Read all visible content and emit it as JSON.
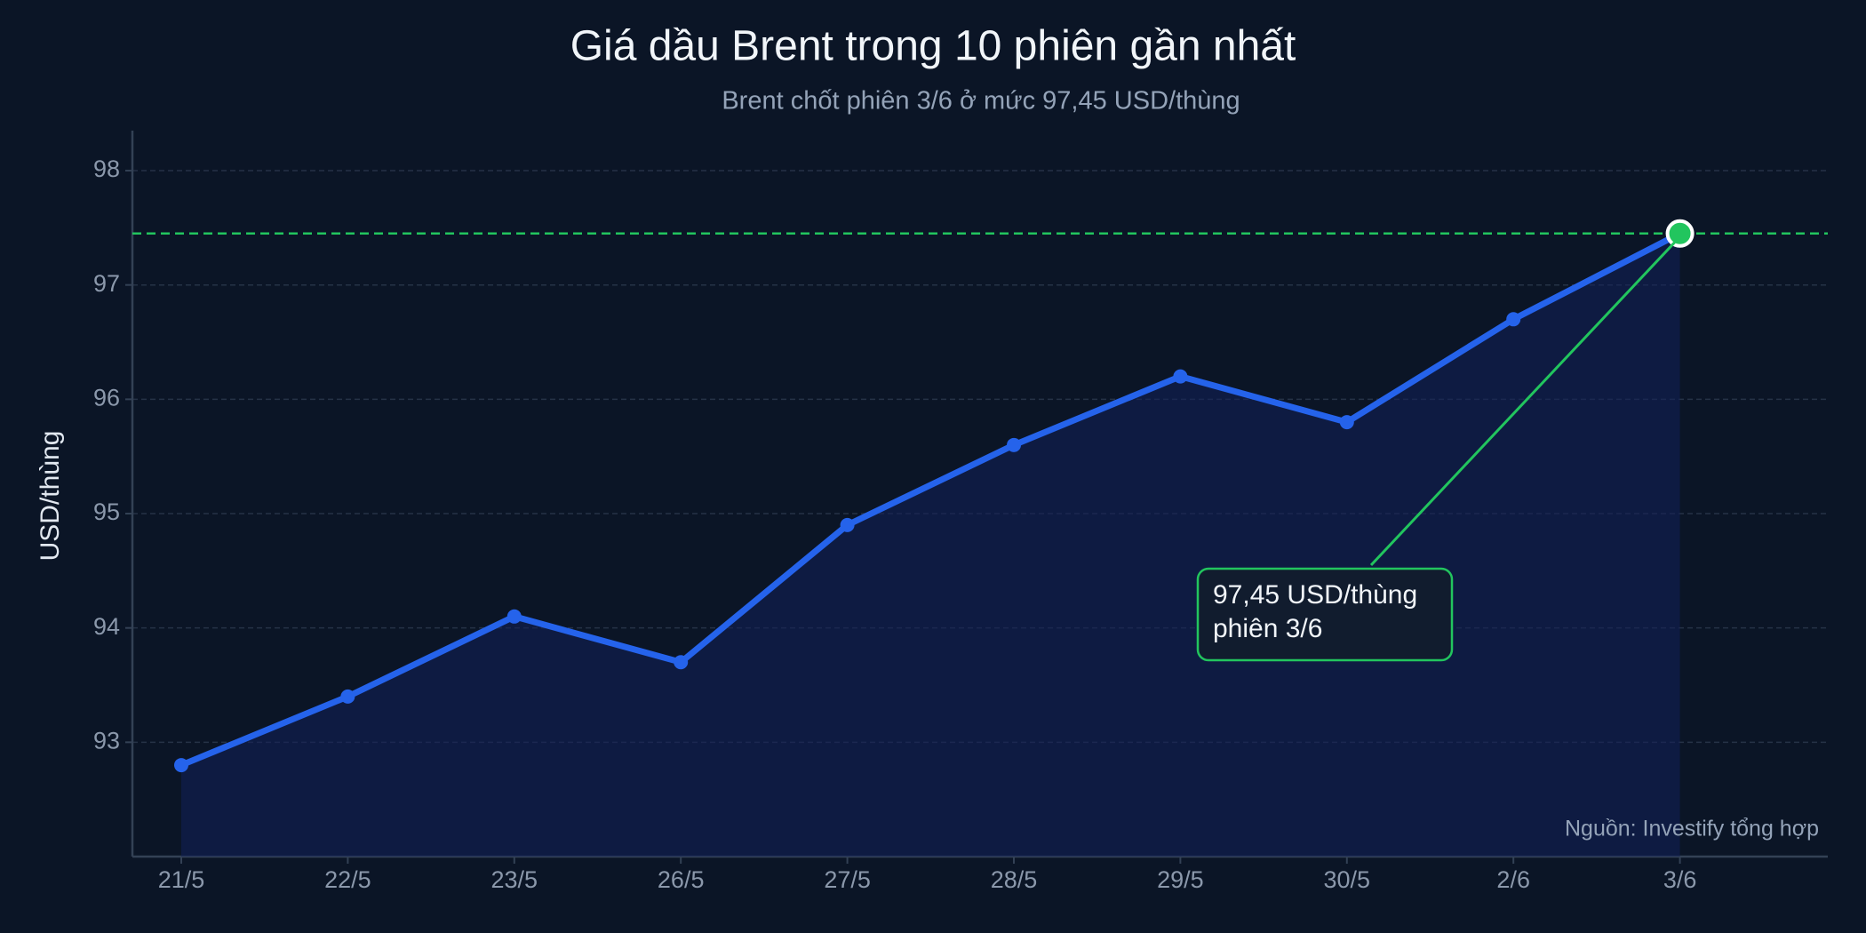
{
  "chart_data": {
    "type": "line",
    "title": "Giá dầu Brent trong 10 phiên gần nhất",
    "subtitle": "Brent chốt phiên 3/6 ở mức 97,45 USD/thùng",
    "ylabel": "USD/thùng",
    "source": "Nguồn: Investify tổng hợp",
    "categories": [
      "21/5",
      "22/5",
      "23/5",
      "26/5",
      "27/5",
      "28/5",
      "29/5",
      "30/5",
      "2/6",
      "3/6"
    ],
    "values": [
      92.8,
      93.4,
      94.1,
      93.7,
      94.9,
      95.6,
      96.2,
      95.8,
      96.7,
      97.45
    ],
    "color": "#2563eb",
    "highlight_color": "#22c55e",
    "reference_line": 97.45,
    "annotation": [
      "97,45 USD/thùng",
      "phiên 3/6"
    ],
    "ylim": [
      92,
      98.35
    ],
    "yticks": [
      93,
      94,
      95,
      96,
      97,
      98
    ],
    "grid": true
  }
}
